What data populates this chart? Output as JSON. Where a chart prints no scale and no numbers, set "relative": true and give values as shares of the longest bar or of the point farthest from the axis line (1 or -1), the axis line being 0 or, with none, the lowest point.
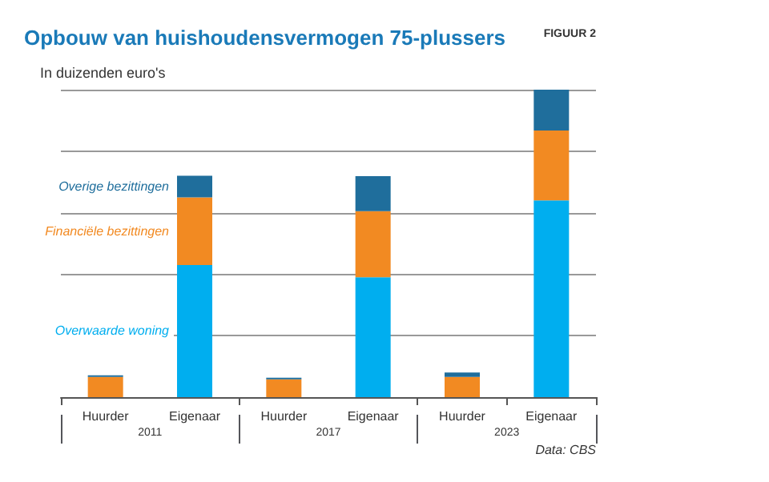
{
  "chart_data": {
    "type": "bar",
    "title": "Opbouw van huishoudensvermogen 75-plussers",
    "subtitle": "In duizenden euro's",
    "categories": [
      "Huurder",
      "Eigenaar",
      "Huurder",
      "Eigenaar",
      "Huurder",
      "Eigenaar"
    ],
    "stacked": true,
    "relative": true,
    "grid": "y",
    "legend": false,
    "annotations": [
      "FIGUUR 2",
      "2011",
      "2017",
      "2023",
      "Data: CBS"
    ],
    "series": [
      {
        "name": "Overwaarde woning",
        "color": "#00aeef",
        "values": [
          0,
          0.43,
          0,
          0.39,
          0,
          0.64
        ]
      },
      {
        "name": "Financiële bezittingen",
        "color": "#f28a22",
        "values": [
          0.066,
          0.22,
          0.058,
          0.215,
          0.066,
          0.227
        ]
      },
      {
        "name": "Overige bezittingen",
        "color": "#1f6e9c",
        "values": [
          0.005,
          0.07,
          0.005,
          0.114,
          0.014,
          0.133
        ]
      }
    ]
  }
}
